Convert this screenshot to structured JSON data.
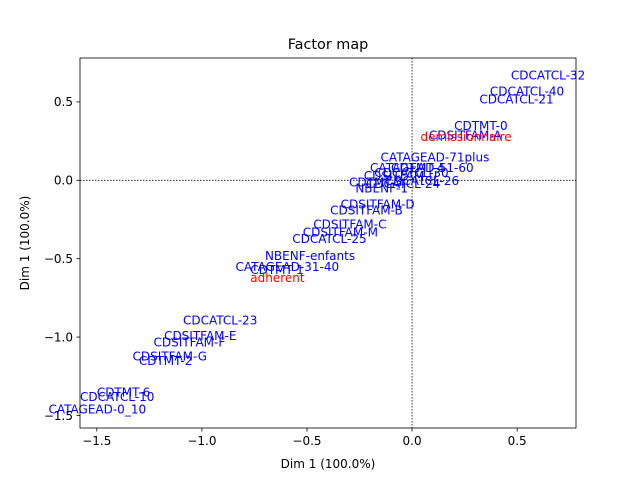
{
  "chart_data": {
    "type": "scatter",
    "title": "Factor map",
    "xlabel": "Dim 1 (100.0%)",
    "ylabel": "Dim 1 (100.0%)",
    "xlim": [
      -1.58,
      0.78
    ],
    "ylim": [
      -1.58,
      0.78
    ],
    "xticks": [
      -1.5,
      -1.0,
      -0.5,
      0.0,
      0.5
    ],
    "yticks": [
      -1.5,
      -1.0,
      -0.5,
      0.0,
      0.5
    ],
    "xtick_labels": [
      "−1.5",
      "−1.0",
      "−0.5",
      "0.0",
      "0.5"
    ],
    "ytick_labels": [
      "−1.5",
      "−1.0",
      "−0.5",
      "0.0",
      "0.5"
    ],
    "grid": false,
    "reference_lines": {
      "x": 0,
      "y": 0,
      "style": "dotted"
    },
    "colors": {
      "category": "#0000ff",
      "supplementary": "#ff0000",
      "axis": "#000000"
    },
    "points": [
      {
        "label": "CDCATCL-32",
        "x": 0.47,
        "y": 0.67,
        "group": "category"
      },
      {
        "label": "CDCATCL-40",
        "x": 0.37,
        "y": 0.57,
        "group": "category"
      },
      {
        "label": "CDCATCL-21",
        "x": 0.32,
        "y": 0.52,
        "group": "category"
      },
      {
        "label": "CDTMT-0",
        "x": 0.2,
        "y": 0.35,
        "group": "category"
      },
      {
        "label": "CDSITFAM-A",
        "x": 0.08,
        "y": 0.29,
        "group": "category"
      },
      {
        "label": "demissionnaire",
        "x": 0.04,
        "y": 0.28,
        "group": "supplementary"
      },
      {
        "label": "CATAGEAD-71plus",
        "x": -0.15,
        "y": 0.15,
        "group": "category"
      },
      {
        "label": "CATAGEAD-51-60",
        "x": -0.2,
        "y": 0.08,
        "group": "category"
      },
      {
        "label": "CDTMT-4",
        "x": -0.1,
        "y": 0.08,
        "group": "category"
      },
      {
        "label": "CDCATCL-30",
        "x": -0.18,
        "y": 0.05,
        "group": "category"
      },
      {
        "label": "CDSITFAM-U",
        "x": -0.23,
        "y": 0.03,
        "group": "category"
      },
      {
        "label": "CDCATCL-26",
        "x": -0.13,
        "y": 0.0,
        "group": "category"
      },
      {
        "label": "CDTMT-5",
        "x": -0.3,
        "y": -0.01,
        "group": "category"
      },
      {
        "label": "CDCATCL-24",
        "x": -0.22,
        "y": -0.02,
        "group": "category"
      },
      {
        "label": "NBENF-1",
        "x": -0.27,
        "y": -0.05,
        "group": "category"
      },
      {
        "label": "CDSITFAM-D",
        "x": -0.34,
        "y": -0.15,
        "group": "category"
      },
      {
        "label": "CDSITFAM-B",
        "x": -0.39,
        "y": -0.19,
        "group": "category"
      },
      {
        "label": "CDSITFAM-C",
        "x": -0.47,
        "y": -0.28,
        "group": "category"
      },
      {
        "label": "CDSITFAM-M",
        "x": -0.52,
        "y": -0.33,
        "group": "category"
      },
      {
        "label": "CDCATCL-25",
        "x": -0.57,
        "y": -0.37,
        "group": "category"
      },
      {
        "label": "NBENF-enfants",
        "x": -0.7,
        "y": -0.48,
        "group": "category"
      },
      {
        "label": "CATAGEAD-31-40",
        "x": -0.84,
        "y": -0.55,
        "group": "category"
      },
      {
        "label": "CDTMT-1",
        "x": -0.77,
        "y": -0.57,
        "group": "category"
      },
      {
        "label": "adherent",
        "x": -0.77,
        "y": -0.62,
        "group": "supplementary"
      },
      {
        "label": "CDCATCL-23",
        "x": -1.09,
        "y": -0.89,
        "group": "category"
      },
      {
        "label": "CDSITFAM-E",
        "x": -1.18,
        "y": -0.99,
        "group": "category"
      },
      {
        "label": "CDSITFAM-F",
        "x": -1.23,
        "y": -1.03,
        "group": "category"
      },
      {
        "label": "CDSITFAM-G",
        "x": -1.33,
        "y": -1.12,
        "group": "category"
      },
      {
        "label": "CDTMT-2",
        "x": -1.3,
        "y": -1.15,
        "group": "category"
      },
      {
        "label": "CDTMT-6",
        "x": -1.5,
        "y": -1.35,
        "group": "category"
      },
      {
        "label": "CDCATCL-10",
        "x": -1.58,
        "y": -1.38,
        "group": "category"
      },
      {
        "label": "CATAGEAD-0_10",
        "x": -1.73,
        "y": -1.46,
        "group": "category"
      }
    ]
  }
}
